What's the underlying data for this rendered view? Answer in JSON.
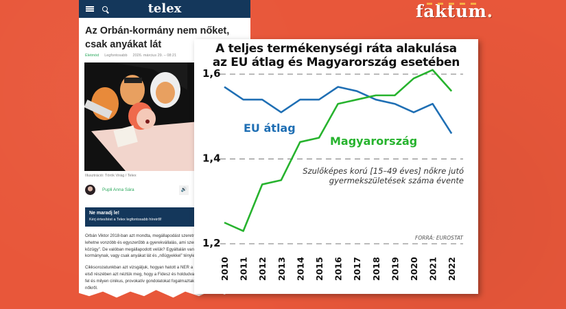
{
  "brand": {
    "name": "faktum",
    "dot": "."
  },
  "article": {
    "site": "telex",
    "title": "Az Orbán-kormány nem nőket, csak anyákat lát",
    "meta": {
      "category": "Életmód",
      "tag": "Legfontosabb",
      "date": "2026. március 29. – 08:21"
    },
    "image_caption": "Illusztráció: Török Virág / Telex",
    "author": "Pupli Anna Sára",
    "cta": {
      "heading": "Ne maradj le!",
      "text": "Kérj értesítést a Telex legfontosabb híreiről!"
    },
    "paragraphs": [
      "Orbán Viktor 2018-ban azt mondta, megállapodást szeretne a nőkkel arról, hogyan lehetne vonzóbb és egyszerűbb a gyerekvállalás, ami szerinte a „legszemélyesebb közügy”. De valóban megállapodott velük? Egyáltalán van nőpolitikája az Orbán-kormánynak, vagy csak anyákat lát és „nőügyekkel” tényleg nem foglalkozik?",
      "Cikksorozatunkban azt vizsgáljuk, hogyan hatott a NER a magyar nőkre. A sorozat első részében azt néztük meg, hogy a Fidesz és holdudvara milyen nőképet épített fel és milyen cinikus, provokatív gondolatokat fogalmaztak meg regnálásuk alatt a nőkről."
    ],
    "link_text": "sorozat első részében"
  },
  "chart_data": {
    "type": "line",
    "title": "A teljes termékenységi ráta alakulása az EU átlag és Magyarország esetében",
    "subtitle": "Szulőképes korú [15–49 éves] nőkre jutó gyermekszületések száma évente",
    "source": "FORRÁ: EUROSTAT",
    "xlabel": "",
    "ylabel": "",
    "x": [
      "2010",
      "2011",
      "2012",
      "2013",
      "2014",
      "2015",
      "2016",
      "2017",
      "2018",
      "2019",
      "2020",
      "2021",
      "2022"
    ],
    "yticks": [
      "1,2",
      "1,4",
      "1,6"
    ],
    "ylim": [
      1.2,
      1.6
    ],
    "grid": "horizontal dashed",
    "series": [
      {
        "name": "EU átlag",
        "color": "#1f6fb4",
        "values": [
          1.57,
          1.54,
          1.54,
          1.51,
          1.54,
          1.54,
          1.57,
          1.56,
          1.54,
          1.53,
          1.51,
          1.53,
          1.46
        ]
      },
      {
        "name": "Magyarország",
        "color": "#27b32e",
        "values": [
          1.25,
          1.23,
          1.34,
          1.35,
          1.44,
          1.45,
          1.53,
          1.54,
          1.55,
          1.55,
          1.59,
          1.61,
          1.56
        ]
      }
    ],
    "legend": "inline labels"
  },
  "colors": {
    "background": "#e8573a",
    "telex_navy": "#14375b",
    "eu_blue": "#1f6fb4",
    "hu_green": "#27b32e"
  }
}
